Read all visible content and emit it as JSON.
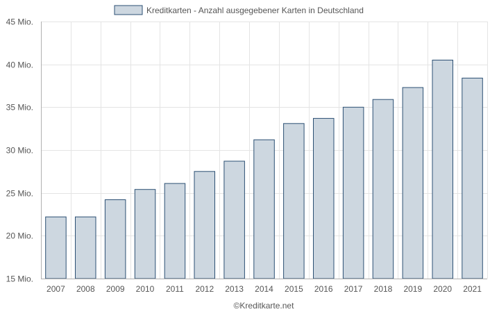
{
  "chart_data": {
    "type": "bar",
    "title": "",
    "xlabel": "",
    "ylabel": "",
    "categories": [
      "2007",
      "2008",
      "2009",
      "2010",
      "2011",
      "2012",
      "2013",
      "2014",
      "2015",
      "2016",
      "2017",
      "2018",
      "2019",
      "2020",
      "2021"
    ],
    "series": [
      {
        "name": "Kreditkarten - Anzahl ausgegebener Karten in Deutschland",
        "values": [
          22.2,
          22.2,
          24.2,
          25.4,
          26.1,
          27.5,
          28.7,
          31.2,
          33.1,
          33.7,
          35.0,
          35.9,
          37.3,
          40.5,
          38.4
        ]
      }
    ],
    "ylim": [
      15,
      45
    ],
    "yticks": [
      15,
      20,
      25,
      30,
      35,
      40,
      45
    ],
    "ytick_labels": [
      "15 Mio.",
      "20 Mio.",
      "25 Mio.",
      "30 Mio.",
      "35 Mio.",
      "40 Mio.",
      "45 Mio."
    ],
    "grid": true,
    "legend_position": "top-center",
    "colors": {
      "bar_fill": "#cdd7e0",
      "bar_stroke": "#2b4f73",
      "grid": "#e4e4e4",
      "axis": "#b0b0b0"
    }
  },
  "footer": {
    "credit": "©Kreditkarte.net"
  }
}
